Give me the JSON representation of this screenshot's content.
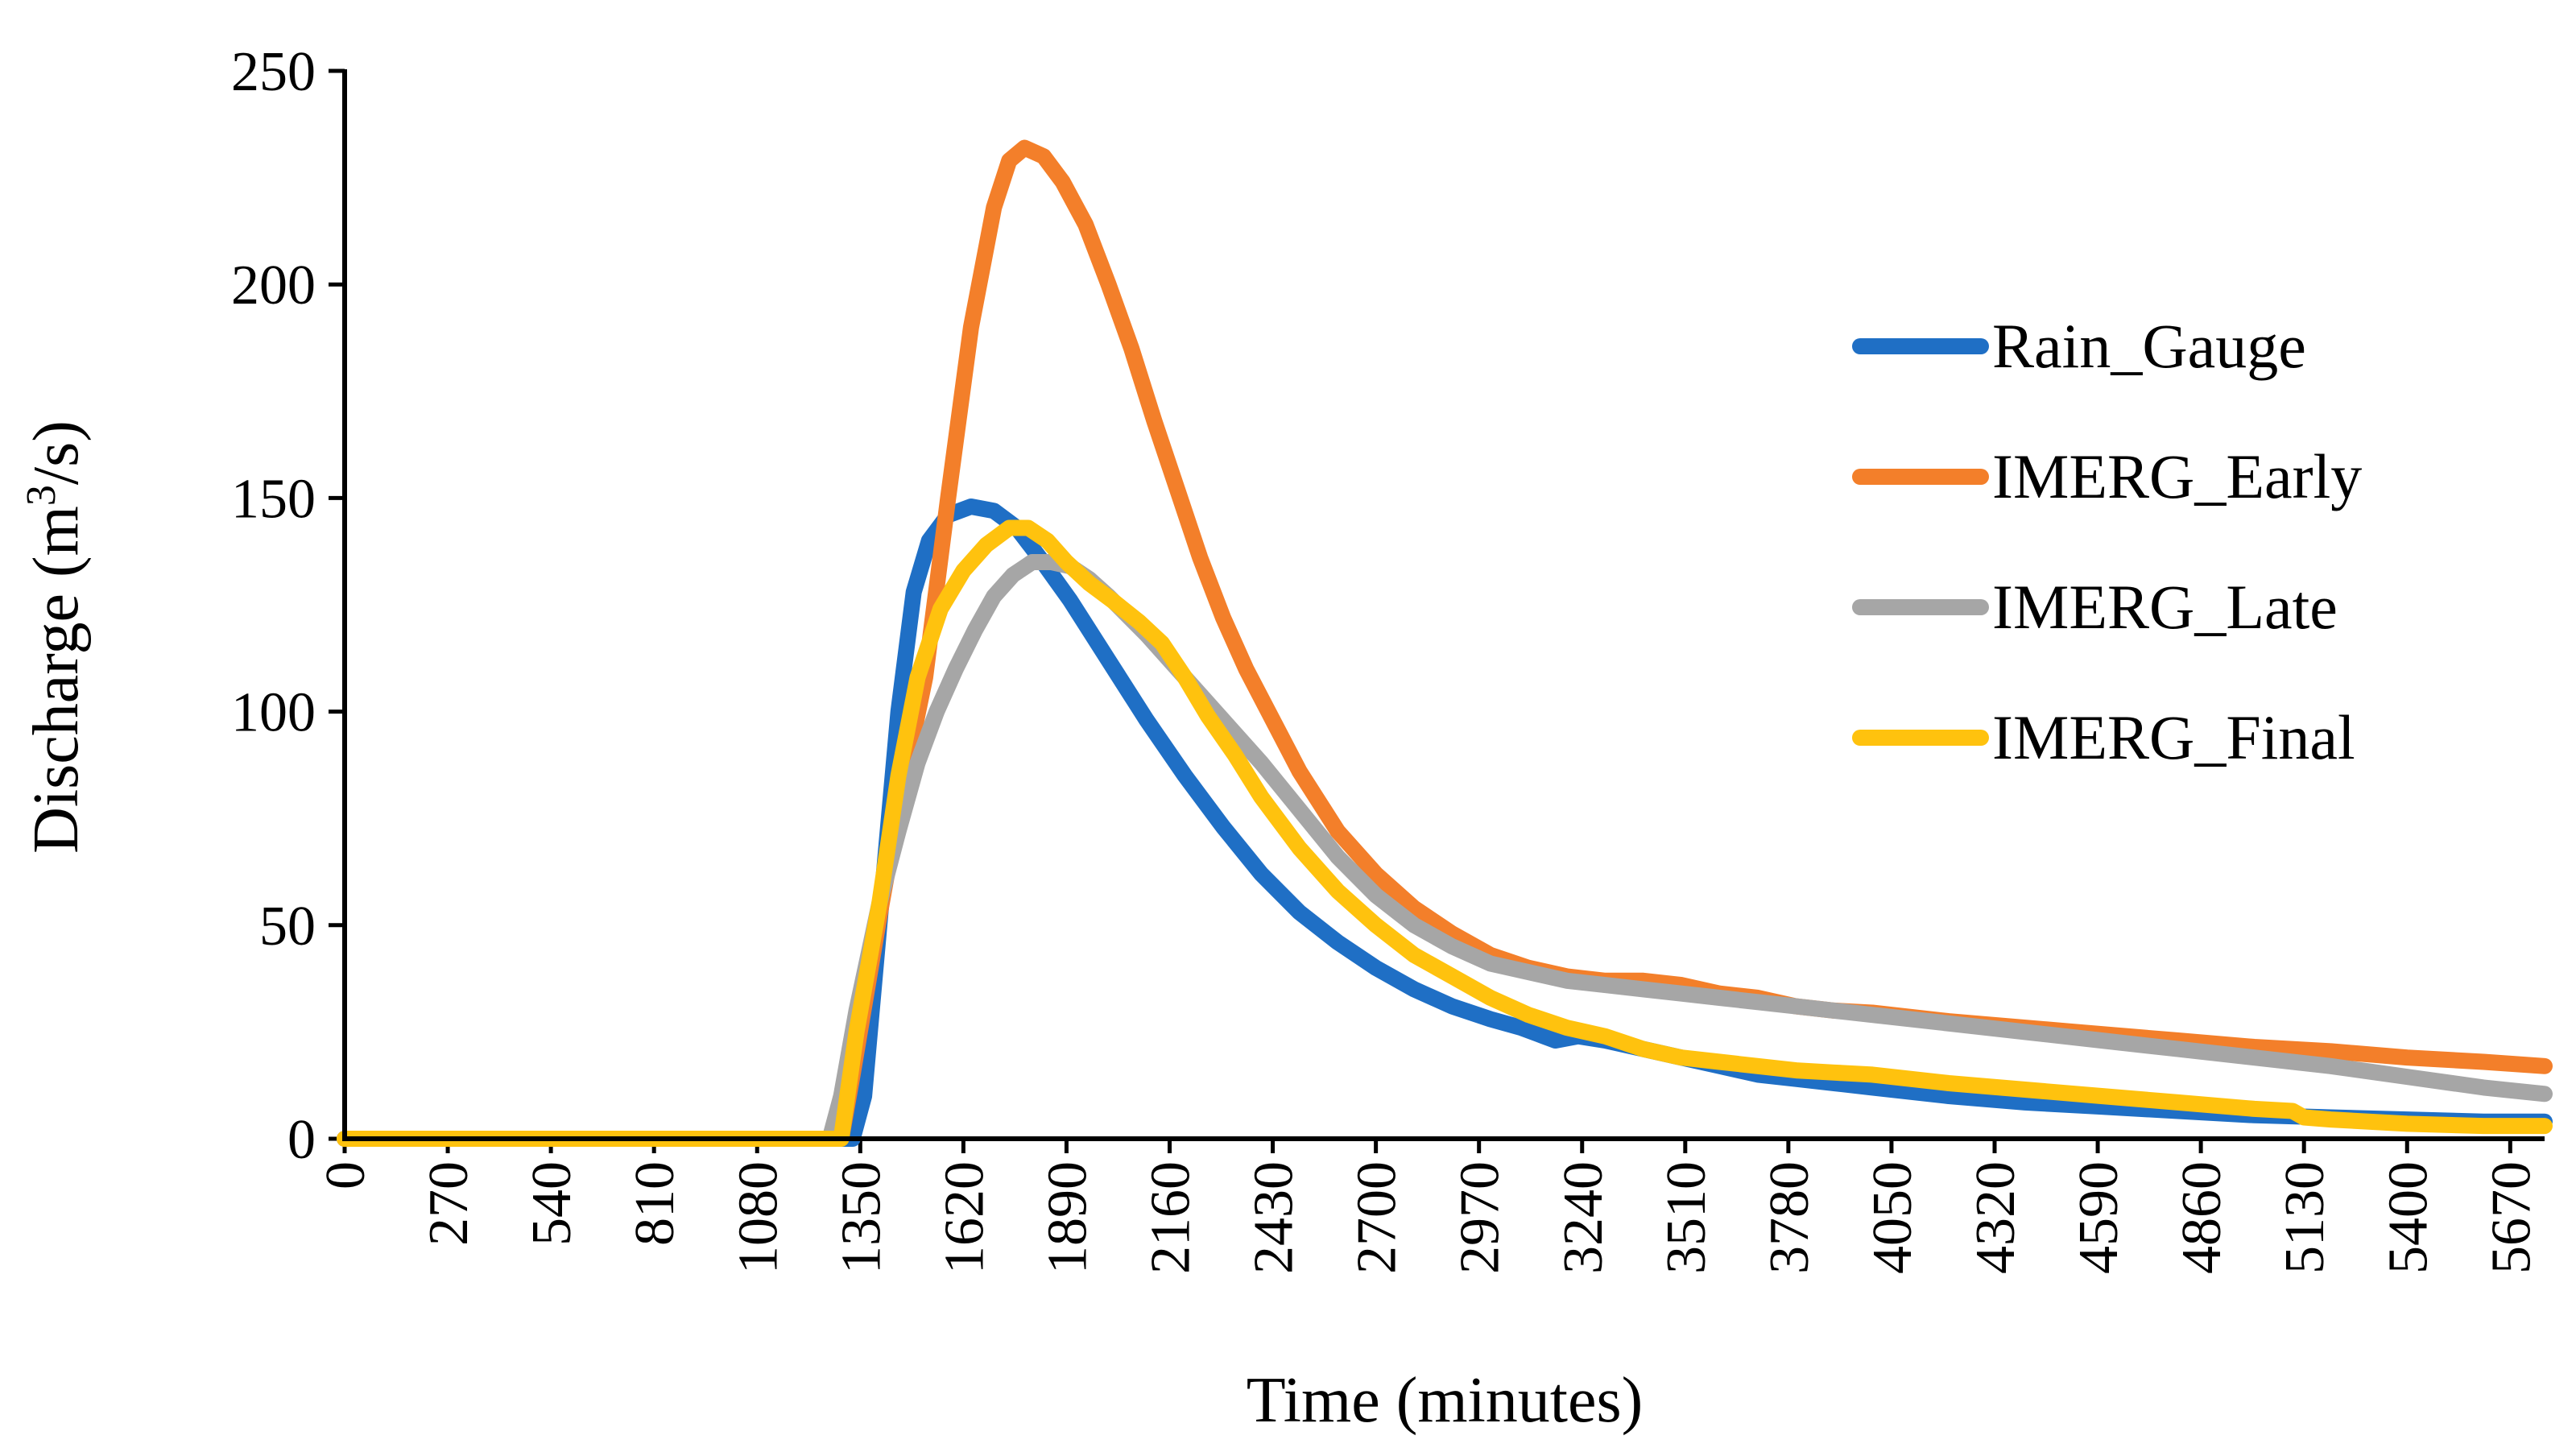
{
  "chart_data": {
    "type": "line",
    "title": "",
    "xlabel": "Time (minutes)",
    "ylabel_prefix": "Discharge (m",
    "ylabel_sup": "3",
    "ylabel_suffix": "/s)",
    "xlim": [
      0,
      5760
    ],
    "ylim": [
      0,
      250
    ],
    "x_ticks": [
      0,
      270,
      540,
      810,
      1080,
      1350,
      1620,
      1890,
      2160,
      2430,
      2700,
      2970,
      3240,
      3510,
      3780,
      4050,
      4320,
      4590,
      4860,
      5130,
      5400,
      5670
    ],
    "y_ticks": [
      0,
      50,
      100,
      150,
      200,
      250
    ],
    "legend_position": "right",
    "series": [
      {
        "name": "Rain_Gauge",
        "color": "#1F6FC5",
        "points": [
          [
            0,
            0
          ],
          [
            1220,
            0
          ],
          [
            1300,
            0
          ],
          [
            1330,
            0
          ],
          [
            1360,
            10
          ],
          [
            1400,
            50
          ],
          [
            1450,
            100
          ],
          [
            1490,
            128
          ],
          [
            1530,
            140
          ],
          [
            1580,
            146
          ],
          [
            1640,
            148
          ],
          [
            1700,
            147
          ],
          [
            1760,
            143
          ],
          [
            1820,
            136
          ],
          [
            1900,
            126
          ],
          [
            2000,
            112
          ],
          [
            2100,
            98
          ],
          [
            2200,
            85
          ],
          [
            2300,
            73
          ],
          [
            2400,
            62
          ],
          [
            2500,
            53
          ],
          [
            2600,
            46
          ],
          [
            2700,
            40
          ],
          [
            2800,
            35
          ],
          [
            2900,
            31
          ],
          [
            3000,
            28
          ],
          [
            3080,
            26
          ],
          [
            3140,
            24
          ],
          [
            3170,
            23
          ],
          [
            3230,
            24
          ],
          [
            3300,
            23
          ],
          [
            3400,
            21
          ],
          [
            3500,
            19
          ],
          [
            3600,
            17
          ],
          [
            3700,
            15
          ],
          [
            3800,
            14
          ],
          [
            3900,
            13
          ],
          [
            4000,
            12
          ],
          [
            4200,
            10
          ],
          [
            4400,
            8.5
          ],
          [
            4600,
            7.5
          ],
          [
            4800,
            6.5
          ],
          [
            5000,
            5.5
          ],
          [
            5200,
            5
          ],
          [
            5400,
            4.5
          ],
          [
            5600,
            4
          ],
          [
            5760,
            4
          ]
        ]
      },
      {
        "name": "IMERG_Early",
        "color": "#F37F2A",
        "points": [
          [
            0,
            0
          ],
          [
            1240,
            0
          ],
          [
            1300,
            0
          ],
          [
            1330,
            15
          ],
          [
            1400,
            52
          ],
          [
            1460,
            82
          ],
          [
            1520,
            108
          ],
          [
            1580,
            150
          ],
          [
            1640,
            190
          ],
          [
            1700,
            218
          ],
          [
            1740,
            229
          ],
          [
            1780,
            232
          ],
          [
            1830,
            230
          ],
          [
            1880,
            224
          ],
          [
            1940,
            214
          ],
          [
            2000,
            200
          ],
          [
            2060,
            185
          ],
          [
            2120,
            168
          ],
          [
            2180,
            152
          ],
          [
            2240,
            136
          ],
          [
            2300,
            122
          ],
          [
            2360,
            110
          ],
          [
            2430,
            98
          ],
          [
            2500,
            86
          ],
          [
            2600,
            72
          ],
          [
            2700,
            62
          ],
          [
            2800,
            54
          ],
          [
            2900,
            48
          ],
          [
            3000,
            43
          ],
          [
            3100,
            40
          ],
          [
            3200,
            38
          ],
          [
            3300,
            37
          ],
          [
            3400,
            37
          ],
          [
            3500,
            36
          ],
          [
            3600,
            34
          ],
          [
            3700,
            33
          ],
          [
            3800,
            31
          ],
          [
            3900,
            30
          ],
          [
            4000,
            29.5
          ],
          [
            4200,
            27.5
          ],
          [
            4400,
            26
          ],
          [
            4600,
            24.5
          ],
          [
            4800,
            23
          ],
          [
            5000,
            21.5
          ],
          [
            5200,
            20.5
          ],
          [
            5400,
            19
          ],
          [
            5600,
            18
          ],
          [
            5760,
            17
          ]
        ]
      },
      {
        "name": "IMERG_Late",
        "color": "#A6A6A6",
        "points": [
          [
            0,
            0
          ],
          [
            1220,
            0
          ],
          [
            1270,
            0
          ],
          [
            1300,
            10
          ],
          [
            1340,
            30
          ],
          [
            1400,
            55
          ],
          [
            1450,
            72
          ],
          [
            1500,
            88
          ],
          [
            1550,
            100
          ],
          [
            1600,
            110
          ],
          [
            1650,
            119
          ],
          [
            1700,
            127
          ],
          [
            1750,
            132
          ],
          [
            1800,
            135
          ],
          [
            1850,
            135
          ],
          [
            1900,
            134
          ],
          [
            1950,
            131
          ],
          [
            2000,
            127
          ],
          [
            2100,
            118
          ],
          [
            2200,
            108
          ],
          [
            2300,
            98
          ],
          [
            2400,
            88
          ],
          [
            2500,
            77
          ],
          [
            2600,
            66
          ],
          [
            2700,
            57
          ],
          [
            2800,
            50
          ],
          [
            2900,
            45
          ],
          [
            3000,
            41
          ],
          [
            3100,
            39
          ],
          [
            3200,
            37
          ],
          [
            3300,
            36
          ],
          [
            3400,
            35
          ],
          [
            3500,
            34
          ],
          [
            3600,
            33
          ],
          [
            3700,
            32
          ],
          [
            3800,
            31
          ],
          [
            3900,
            30
          ],
          [
            4000,
            29
          ],
          [
            4200,
            27
          ],
          [
            4400,
            25
          ],
          [
            4600,
            23
          ],
          [
            4800,
            21
          ],
          [
            5000,
            19
          ],
          [
            5200,
            17
          ],
          [
            5400,
            14.5
          ],
          [
            5600,
            12
          ],
          [
            5760,
            10.5
          ]
        ]
      },
      {
        "name": "IMERG_Final",
        "color": "#FFC20E",
        "points": [
          [
            0,
            0
          ],
          [
            1220,
            0
          ],
          [
            1260,
            0
          ],
          [
            1300,
            0
          ],
          [
            1340,
            25
          ],
          [
            1400,
            55
          ],
          [
            1450,
            85
          ],
          [
            1500,
            108
          ],
          [
            1560,
            124
          ],
          [
            1620,
            133
          ],
          [
            1680,
            139
          ],
          [
            1740,
            143
          ],
          [
            1790,
            143
          ],
          [
            1840,
            140
          ],
          [
            1890,
            135
          ],
          [
            1950,
            130
          ],
          [
            2010,
            126
          ],
          [
            2080,
            121
          ],
          [
            2140,
            116
          ],
          [
            2200,
            108
          ],
          [
            2260,
            99
          ],
          [
            2330,
            90
          ],
          [
            2400,
            80
          ],
          [
            2500,
            68
          ],
          [
            2600,
            58
          ],
          [
            2700,
            50
          ],
          [
            2800,
            43
          ],
          [
            2900,
            38
          ],
          [
            3000,
            33
          ],
          [
            3100,
            29
          ],
          [
            3200,
            26
          ],
          [
            3300,
            24
          ],
          [
            3400,
            21
          ],
          [
            3500,
            19
          ],
          [
            3600,
            18
          ],
          [
            3700,
            17
          ],
          [
            3800,
            16
          ],
          [
            3900,
            15.5
          ],
          [
            4000,
            15
          ],
          [
            4200,
            13
          ],
          [
            4400,
            11.5
          ],
          [
            4600,
            10
          ],
          [
            4800,
            8.5
          ],
          [
            5000,
            7
          ],
          [
            5100,
            6.5
          ],
          [
            5130,
            5
          ],
          [
            5200,
            4.5
          ],
          [
            5400,
            3.5
          ],
          [
            5600,
            3
          ],
          [
            5760,
            3
          ]
        ]
      }
    ]
  }
}
